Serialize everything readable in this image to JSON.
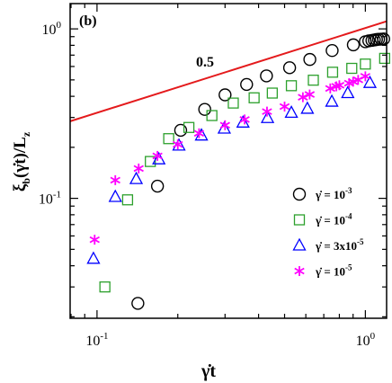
{
  "chart_data": {
    "type": "scatter",
    "panel_label": "(b)",
    "xlabel": {
      "main": "γ̇t"
    },
    "ylabel": {
      "xi": "ξ",
      "sub_b": "b",
      "mid": "(γ̇t)/L",
      "sub_z": "z"
    },
    "x_scale": "log",
    "y_scale": "log",
    "xlim": [
      0.0794,
      1.2
    ],
    "ylim": [
      0.0196,
      1.41
    ],
    "x_ticks": [
      {
        "value": 0.1,
        "base": "10",
        "exp": "-1"
      },
      {
        "value": 1.0,
        "base": "10",
        "exp": "0"
      }
    ],
    "y_ticks": [
      {
        "value": 0.1,
        "base": "10",
        "exp": "-1"
      },
      {
        "value": 1.0,
        "base": "10",
        "exp": "0"
      }
    ],
    "grid": false,
    "legend_position": "bottom-right",
    "reference_line": {
      "label": "0.5",
      "color": "#e41a1c",
      "slope": 0.5,
      "points": [
        [
          0.0794,
          0.285
        ],
        [
          1.2,
          1.108
        ]
      ]
    },
    "series": [
      {
        "label": "γ̇ = 10-3",
        "label_base": "γ̇ = 10",
        "label_exp": "-3",
        "marker": "circle",
        "color": "#000000",
        "points": [
          [
            0.142,
            0.024
          ],
          [
            0.168,
            0.118
          ],
          [
            0.205,
            0.252
          ],
          [
            0.252,
            0.335
          ],
          [
            0.3,
            0.408
          ],
          [
            0.361,
            0.47
          ],
          [
            0.428,
            0.528
          ],
          [
            0.522,
            0.59
          ],
          [
            0.621,
            0.66
          ],
          [
            0.752,
            0.745
          ],
          [
            0.902,
            0.805
          ],
          [
            1.0,
            0.84
          ],
          [
            1.03,
            0.85
          ],
          [
            1.058,
            0.855
          ],
          [
            1.08,
            0.86
          ],
          [
            1.1,
            0.865
          ],
          [
            1.12,
            0.868
          ],
          [
            1.145,
            0.87
          ],
          [
            1.17,
            0.872
          ]
        ]
      },
      {
        "label": "γ̇ = 10-4",
        "label_base": "γ̇ = 10",
        "label_exp": "-4",
        "marker": "square",
        "color": "#2ca02c",
        "points": [
          [
            0.107,
            0.03
          ],
          [
            0.13,
            0.098
          ],
          [
            0.158,
            0.165
          ],
          [
            0.185,
            0.225
          ],
          [
            0.22,
            0.262
          ],
          [
            0.268,
            0.308
          ],
          [
            0.322,
            0.365
          ],
          [
            0.385,
            0.392
          ],
          [
            0.45,
            0.418
          ],
          [
            0.53,
            0.462
          ],
          [
            0.64,
            0.498
          ],
          [
            0.755,
            0.555
          ],
          [
            0.89,
            0.585
          ],
          [
            1.0,
            0.62
          ],
          [
            1.18,
            0.67
          ]
        ]
      },
      {
        "label": "γ̇ = 3x10-5",
        "label_base": "γ̇ = 3x10",
        "label_exp": "-5",
        "marker": "triangle",
        "color": "#0000ff",
        "points": [
          [
            0.097,
            0.044
          ],
          [
            0.117,
            0.102
          ],
          [
            0.14,
            0.13
          ],
          [
            0.17,
            0.17
          ],
          [
            0.202,
            0.205
          ],
          [
            0.245,
            0.235
          ],
          [
            0.298,
            0.258
          ],
          [
            0.35,
            0.28
          ],
          [
            0.432,
            0.298
          ],
          [
            0.53,
            0.32
          ],
          [
            0.608,
            0.338
          ],
          [
            0.75,
            0.372
          ],
          [
            0.86,
            0.418
          ],
          [
            1.04,
            0.48
          ]
        ]
      },
      {
        "label": "γ̇ = 10-5",
        "label_base": "γ̇ = 10",
        "label_exp": "-5",
        "marker": "asterisk",
        "color": "#ff00ff",
        "points": [
          [
            0.098,
            0.057
          ],
          [
            0.117,
            0.128
          ],
          [
            0.143,
            0.15
          ],
          [
            0.168,
            0.178
          ],
          [
            0.2,
            0.208
          ],
          [
            0.24,
            0.242
          ],
          [
            0.3,
            0.27
          ],
          [
            0.355,
            0.292
          ],
          [
            0.43,
            0.325
          ],
          [
            0.5,
            0.348
          ],
          [
            0.585,
            0.395
          ],
          [
            0.62,
            0.41
          ],
          [
            0.74,
            0.445
          ],
          [
            0.78,
            0.458
          ],
          [
            0.8,
            0.465
          ],
          [
            0.87,
            0.478
          ],
          [
            0.9,
            0.488
          ],
          [
            0.94,
            0.5
          ],
          [
            1.0,
            0.525
          ]
        ]
      }
    ]
  }
}
